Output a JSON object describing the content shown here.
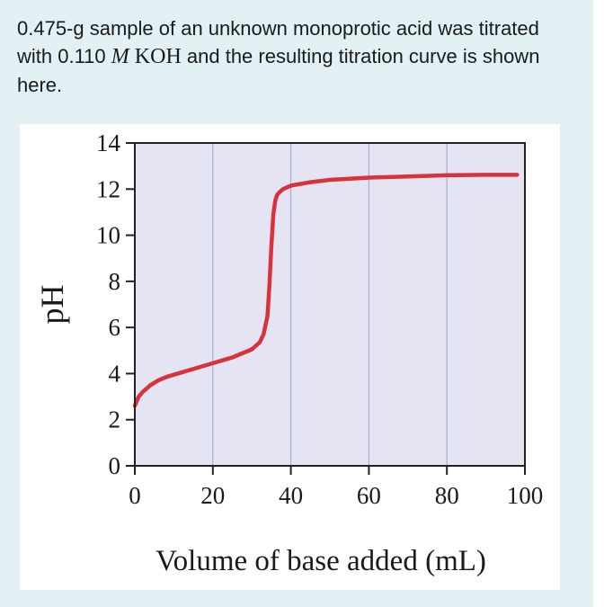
{
  "question": {
    "text_before": "0.475-g sample of an unknown monoprotic acid was titrated with 0.110 ",
    "molarity_symbol": "M",
    "formula": "KOH",
    "text_after": " and the resulting titration curve is shown here."
  },
  "chart_data": {
    "type": "line",
    "title": "",
    "xlabel": "Volume of base added (mL)",
    "ylabel": "pH",
    "xlim": [
      0,
      100
    ],
    "ylim": [
      0,
      14
    ],
    "xticks": [
      0,
      20,
      40,
      60,
      80,
      100
    ],
    "yticks": [
      0,
      2,
      4,
      6,
      8,
      10,
      12,
      14
    ],
    "grid": "vertical",
    "colors": {
      "line": "#d8323c",
      "plot_bg": "#e4e4f2",
      "grid": "#9aa6cc",
      "axis": "#222222"
    },
    "series": [
      {
        "x": [
          0,
          1,
          2,
          4,
          6,
          8,
          10,
          15,
          20,
          25,
          30,
          32,
          33,
          34,
          34.5,
          35,
          35.5,
          36,
          36.5,
          37,
          38,
          40,
          45,
          50,
          60,
          70,
          80,
          90,
          98
        ],
        "y": [
          2.6,
          3.0,
          3.2,
          3.5,
          3.7,
          3.85,
          3.95,
          4.2,
          4.45,
          4.7,
          5.05,
          5.35,
          5.7,
          6.5,
          7.8,
          9.5,
          10.9,
          11.5,
          11.75,
          11.85,
          12.0,
          12.15,
          12.3,
          12.4,
          12.5,
          12.55,
          12.6,
          12.62,
          12.62
        ]
      }
    ]
  }
}
